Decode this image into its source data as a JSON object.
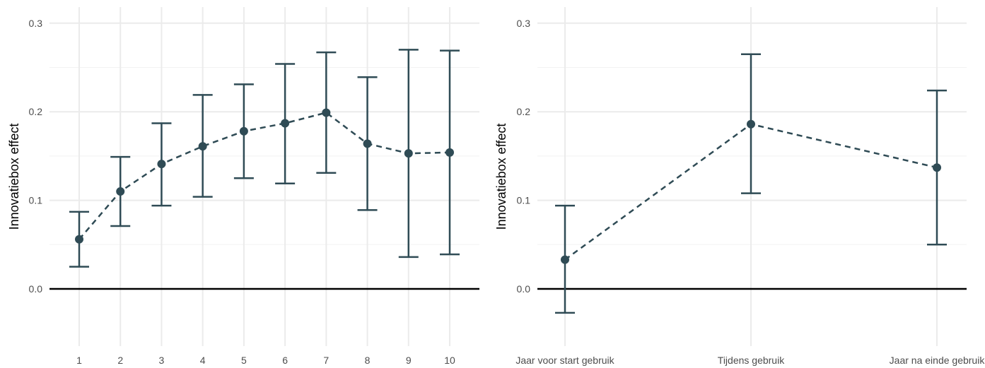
{
  "chart_data": [
    {
      "type": "line",
      "title": "",
      "xlabel": "",
      "ylabel": "Innovatiebox effect",
      "categories": [
        "1",
        "2",
        "3",
        "4",
        "5",
        "6",
        "7",
        "8",
        "9",
        "10"
      ],
      "series": [
        {
          "values": [
            0.056,
            0.11,
            0.141,
            0.161,
            0.178,
            0.187,
            0.199,
            0.164,
            0.153,
            0.154
          ],
          "lower": [
            0.025,
            0.071,
            0.094,
            0.104,
            0.125,
            0.119,
            0.131,
            0.089,
            0.036,
            0.039
          ],
          "upper": [
            0.087,
            0.149,
            0.187,
            0.219,
            0.231,
            0.254,
            0.267,
            0.239,
            0.27,
            0.269
          ]
        }
      ],
      "ylim": [
        -0.06,
        0.31
      ],
      "yticks": [
        "0.0",
        "0.1",
        "0.2",
        "0.3"
      ],
      "reference_line": 0,
      "line_style": "dashed",
      "color": "#2f4b55",
      "grid": true,
      "legend": "none"
    },
    {
      "type": "line",
      "title": "",
      "xlabel": "",
      "ylabel": "Innovatiebox effect",
      "categories": [
        "Jaar voor start gebruik",
        "Tijdens gebruik",
        "Jaar na einde gebruik"
      ],
      "series": [
        {
          "values": [
            0.033,
            0.186,
            0.137
          ],
          "lower": [
            -0.027,
            0.108,
            0.05
          ],
          "upper": [
            0.094,
            0.265,
            0.224
          ]
        }
      ],
      "ylim": [
        -0.06,
        0.31
      ],
      "yticks": [
        "0.0",
        "0.1",
        "0.2",
        "0.3"
      ],
      "reference_line": 0,
      "line_style": "dashed",
      "color": "#2f4b55",
      "grid": true,
      "legend": "none"
    }
  ]
}
